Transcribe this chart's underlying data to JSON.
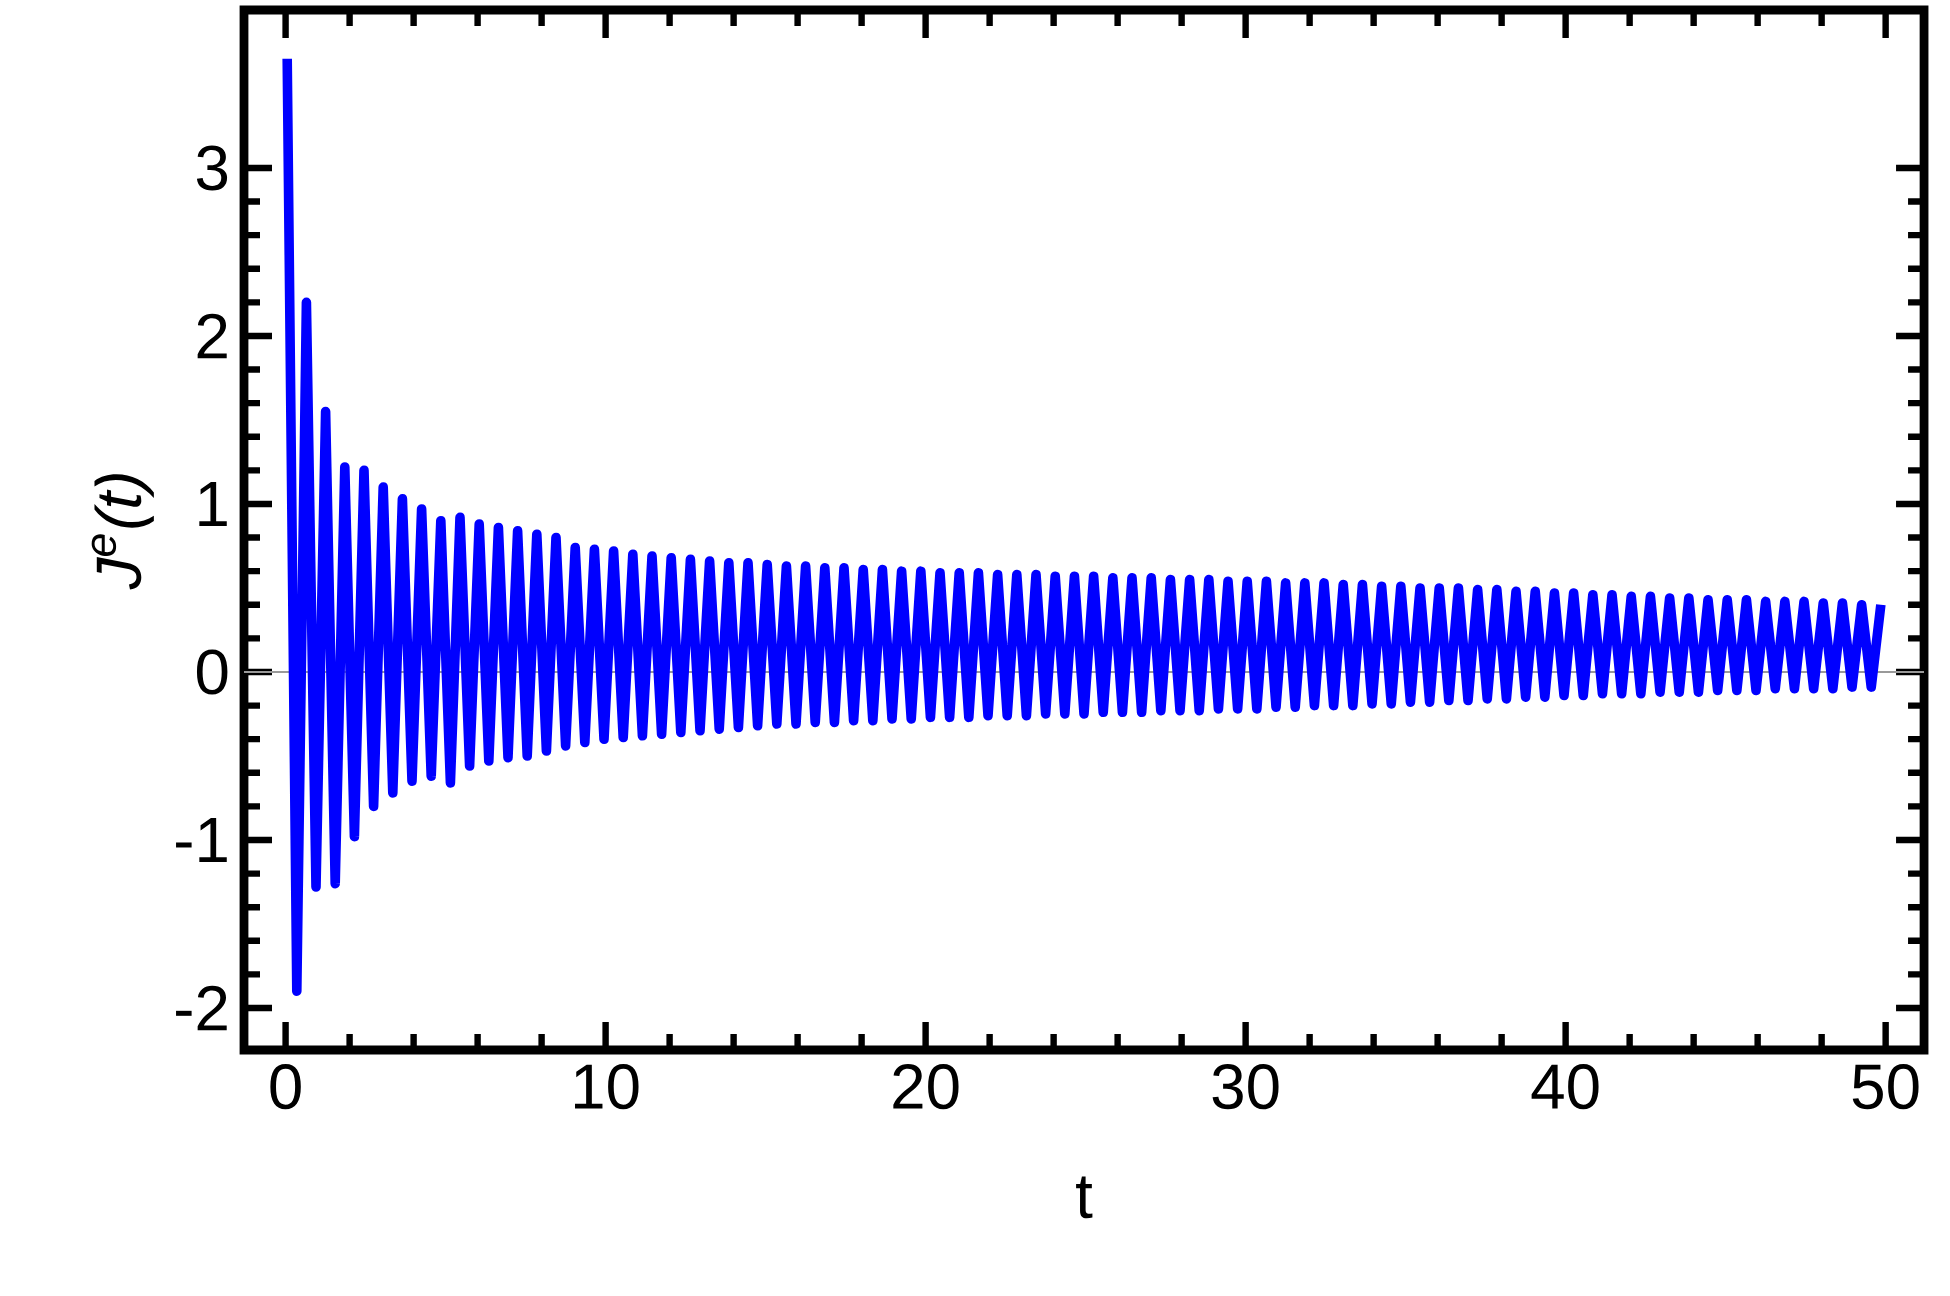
{
  "chart_data": {
    "type": "line",
    "xlabel": "t",
    "ylabel": "J$^{e}$(t)",
    "xlim": [
      -1.3,
      51.2
    ],
    "ylim": [
      -2.25,
      3.94
    ],
    "xticks": [
      0,
      10,
      20,
      30,
      40,
      50
    ],
    "yticks": [
      -2,
      -1,
      0,
      1,
      2,
      3
    ],
    "ref_lines": [
      {
        "axis": "y",
        "value": 0,
        "color": "#999999"
      }
    ],
    "x": [
      0.05,
      0.35,
      0.65,
      0.95,
      1.25,
      1.55,
      1.85,
      2.15,
      2.45,
      2.75,
      3.05,
      3.35,
      3.65,
      3.95,
      4.25,
      4.55,
      4.85,
      5.15,
      5.45,
      5.75,
      6.05,
      6.35,
      6.65,
      6.95,
      7.25,
      7.55,
      7.85,
      8.15,
      8.45,
      8.75,
      9.05,
      9.35,
      9.65,
      9.95,
      10.25,
      10.55,
      10.85,
      11.15,
      11.45,
      11.75,
      12.05,
      12.35,
      12.65,
      12.95,
      13.25,
      13.55,
      13.85,
      14.15,
      14.45,
      14.75,
      15.05,
      15.35,
      15.65,
      15.95,
      16.25,
      16.55,
      16.85,
      17.15,
      17.45,
      17.75,
      18.05,
      18.35,
      18.65,
      18.95,
      19.25,
      19.55,
      19.85,
      20.15,
      20.45,
      20.75,
      21.05,
      21.35,
      21.65,
      21.95,
      22.25,
      22.55,
      22.85,
      23.15,
      23.45,
      23.75,
      24.05,
      24.35,
      24.65,
      24.95,
      25.25,
      25.55,
      25.85,
      26.15,
      26.45,
      26.75,
      27.05,
      27.35,
      27.65,
      27.95,
      28.25,
      28.55,
      28.85,
      29.15,
      29.45,
      29.75,
      30.05,
      30.35,
      30.65,
      30.95,
      31.25,
      31.55,
      31.85,
      32.15,
      32.45,
      32.75,
      33.05,
      33.35,
      33.65,
      33.95,
      34.25,
      34.55,
      34.85,
      35.15,
      35.45,
      35.75,
      36.05,
      36.35,
      36.65,
      36.95,
      37.25,
      37.55,
      37.85,
      38.15,
      38.45,
      38.75,
      39.05,
      39.35,
      39.65,
      39.95,
      40.25,
      40.55,
      40.85,
      41.15,
      41.45,
      41.75,
      42.05,
      42.35,
      42.65,
      42.95,
      43.25,
      43.55,
      43.85,
      44.15,
      44.45,
      44.75,
      45.05,
      45.35,
      45.65,
      45.95,
      46.25,
      46.55,
      46.85,
      47.15,
      47.45,
      47.75,
      48.05,
      48.35,
      48.65,
      48.95,
      49.25,
      49.55,
      49.85
    ],
    "series": [
      {
        "color": "#0000ff",
        "line_style": "solid",
        "marker": "none",
        "values": [
          3.65,
          -1.9,
          2.2,
          -1.28,
          1.55,
          -1.26,
          1.22,
          -0.98,
          1.2,
          -0.8,
          1.1,
          -0.72,
          1.03,
          -0.65,
          0.97,
          -0.62,
          0.9,
          -0.66,
          0.92,
          -0.56,
          0.88,
          -0.53,
          0.86,
          -0.51,
          0.84,
          -0.5,
          0.82,
          -0.47,
          0.8,
          -0.44,
          0.74,
          -0.42,
          0.73,
          -0.4,
          0.72,
          -0.39,
          0.7,
          -0.38,
          0.69,
          -0.37,
          0.68,
          -0.36,
          0.67,
          -0.35,
          0.66,
          -0.34,
          0.65,
          -0.33,
          0.65,
          -0.32,
          0.64,
          -0.31,
          0.63,
          -0.31,
          0.63,
          -0.3,
          0.62,
          -0.3,
          0.62,
          -0.29,
          0.61,
          -0.29,
          0.61,
          -0.28,
          0.6,
          -0.28,
          0.6,
          -0.27,
          0.59,
          -0.27,
          0.59,
          -0.27,
          0.59,
          -0.26,
          0.58,
          -0.26,
          0.58,
          -0.26,
          0.58,
          -0.25,
          0.57,
          -0.25,
          0.57,
          -0.25,
          0.57,
          -0.24,
          0.56,
          -0.24,
          0.56,
          -0.24,
          0.56,
          -0.23,
          0.55,
          -0.23,
          0.55,
          -0.23,
          0.55,
          -0.22,
          0.54,
          -0.22,
          0.54,
          -0.22,
          0.54,
          -0.21,
          0.53,
          -0.21,
          0.53,
          -0.2,
          0.53,
          -0.2,
          0.52,
          -0.2,
          0.52,
          -0.19,
          0.51,
          -0.19,
          0.51,
          -0.18,
          0.5,
          -0.18,
          0.5,
          -0.17,
          0.5,
          -0.17,
          0.49,
          -0.16,
          0.49,
          -0.16,
          0.48,
          -0.15,
          0.48,
          -0.15,
          0.47,
          -0.14,
          0.47,
          -0.14,
          0.46,
          -0.13,
          0.46,
          -0.13,
          0.45,
          -0.13,
          0.45,
          -0.12,
          0.44,
          -0.12,
          0.44,
          -0.12,
          0.43,
          -0.11,
          0.43,
          -0.11,
          0.43,
          -0.11,
          0.42,
          -0.1,
          0.42,
          -0.1,
          0.42,
          -0.1,
          0.41,
          -0.1,
          0.41,
          -0.09,
          0.4,
          -0.09,
          0.4
        ]
      }
    ]
  }
}
